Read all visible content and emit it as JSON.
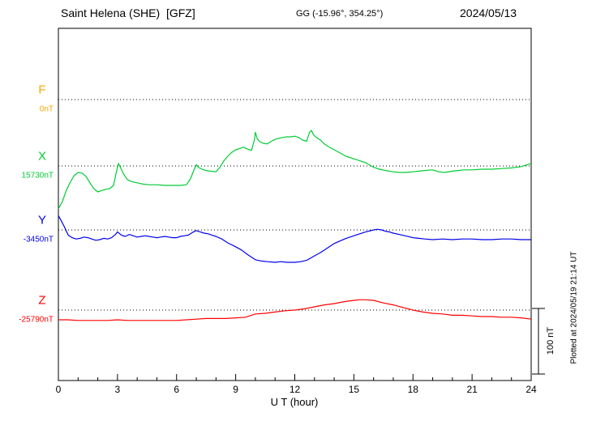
{
  "header": {
    "station_title": "Saint Helena (SHE)  [GFZ]",
    "gg_label": "GG (-15.96°, 354.25°)",
    "date": "2024/05/13"
  },
  "axis": {
    "xlabel": "U T (hour)",
    "x_ticks": [
      0,
      3,
      6,
      9,
      12,
      15,
      18,
      21,
      24
    ]
  },
  "scale_bar": {
    "label": "100 nT",
    "nT": 100
  },
  "plotted_at": "Plotted at 2024/05/19 21:14 UT",
  "chart_data": {
    "type": "line",
    "title": "Saint Helena (SHE) [GFZ] magnetogram 2024/05/13",
    "xlabel": "U T (hour)",
    "x_range": [
      0,
      24
    ],
    "x_ticks": [
      0,
      3,
      6,
      9,
      12,
      15,
      18,
      21,
      24
    ],
    "grid": "dotted horizontal baselines per component",
    "scale_bar": {
      "label": "100 nT",
      "nT": 100
    },
    "y_unit": "nT offset from component baseline",
    "series": [
      {
        "name": "F",
        "color": "#FFA500",
        "baseline_label": "0nT",
        "points": []
      },
      {
        "name": "X",
        "color": "#00CC33",
        "baseline_label": "15730nT",
        "points": [
          [
            0,
            -66
          ],
          [
            0.2,
            -55
          ],
          [
            0.4,
            -38
          ],
          [
            0.6,
            -25
          ],
          [
            0.8,
            -15
          ],
          [
            1,
            -10
          ],
          [
            1.2,
            -11
          ],
          [
            1.4,
            -16
          ],
          [
            1.6,
            -26
          ],
          [
            1.8,
            -35
          ],
          [
            2,
            -40
          ],
          [
            2.2,
            -38
          ],
          [
            2.4,
            -36
          ],
          [
            2.6,
            -35
          ],
          [
            2.8,
            -30
          ],
          [
            2.95,
            -8
          ],
          [
            3.05,
            4
          ],
          [
            3.15,
            -2
          ],
          [
            3.3,
            -12
          ],
          [
            3.5,
            -21
          ],
          [
            3.7,
            -24
          ],
          [
            4,
            -26
          ],
          [
            4.3,
            -28
          ],
          [
            4.6,
            -29
          ],
          [
            5,
            -29
          ],
          [
            5.4,
            -30
          ],
          [
            5.8,
            -30
          ],
          [
            6.2,
            -30
          ],
          [
            6.5,
            -29
          ],
          [
            6.7,
            -20
          ],
          [
            6.9,
            -5
          ],
          [
            7,
            2
          ],
          [
            7.1,
            -2
          ],
          [
            7.3,
            -5
          ],
          [
            7.5,
            -7
          ],
          [
            7.7,
            -8
          ],
          [
            8,
            -9
          ],
          [
            8.2,
            -2
          ],
          [
            8.4,
            8
          ],
          [
            8.6,
            15
          ],
          [
            8.8,
            21
          ],
          [
            9,
            25
          ],
          [
            9.2,
            27
          ],
          [
            9.4,
            29
          ],
          [
            9.6,
            26
          ],
          [
            9.8,
            24
          ],
          [
            9.95,
            40
          ],
          [
            10,
            52
          ],
          [
            10.1,
            42
          ],
          [
            10.2,
            38
          ],
          [
            10.4,
            35
          ],
          [
            10.6,
            34
          ],
          [
            10.8,
            38
          ],
          [
            11,
            41
          ],
          [
            11.2,
            43
          ],
          [
            11.4,
            44
          ],
          [
            11.6,
            45
          ],
          [
            11.8,
            45
          ],
          [
            12,
            46
          ],
          [
            12.2,
            44
          ],
          [
            12.4,
            40
          ],
          [
            12.6,
            38
          ],
          [
            12.75,
            52
          ],
          [
            12.85,
            55
          ],
          [
            12.95,
            48
          ],
          [
            13.1,
            44
          ],
          [
            13.3,
            40
          ],
          [
            13.5,
            34
          ],
          [
            13.7,
            30
          ],
          [
            14,
            25
          ],
          [
            14.3,
            20
          ],
          [
            14.6,
            15
          ],
          [
            15,
            11
          ],
          [
            15.3,
            8
          ],
          [
            15.6,
            5
          ],
          [
            16,
            -2
          ],
          [
            16.3,
            -5
          ],
          [
            16.6,
            -7
          ],
          [
            17,
            -9
          ],
          [
            17.3,
            -10
          ],
          [
            17.6,
            -10
          ],
          [
            18,
            -9
          ],
          [
            18.3,
            -8
          ],
          [
            18.6,
            -7
          ],
          [
            19,
            -6
          ],
          [
            19.3,
            -9
          ],
          [
            19.6,
            -10
          ],
          [
            20,
            -8
          ],
          [
            20.3,
            -7
          ],
          [
            20.6,
            -6
          ],
          [
            21,
            -6
          ],
          [
            21.5,
            -5
          ],
          [
            22,
            -5
          ],
          [
            22.5,
            -4
          ],
          [
            23,
            -3
          ],
          [
            23.5,
            -1
          ],
          [
            24,
            4
          ]
        ]
      },
      {
        "name": "Y",
        "color": "#0000EE",
        "baseline_label": "-3450nT",
        "points": [
          [
            0,
            22
          ],
          [
            0.15,
            14
          ],
          [
            0.3,
            5
          ],
          [
            0.5,
            -8
          ],
          [
            0.7,
            -12
          ],
          [
            0.9,
            -14
          ],
          [
            1.1,
            -13
          ],
          [
            1.3,
            -11
          ],
          [
            1.5,
            -12
          ],
          [
            1.7,
            -14
          ],
          [
            1.9,
            -16
          ],
          [
            2.1,
            -15
          ],
          [
            2.3,
            -13
          ],
          [
            2.5,
            -14
          ],
          [
            2.7,
            -12
          ],
          [
            2.9,
            -7
          ],
          [
            3,
            -3
          ],
          [
            3.2,
            -8
          ],
          [
            3.4,
            -10
          ],
          [
            3.6,
            -7
          ],
          [
            3.8,
            -9
          ],
          [
            4,
            -11
          ],
          [
            4.2,
            -10
          ],
          [
            4.4,
            -9
          ],
          [
            4.6,
            -10
          ],
          [
            4.8,
            -11
          ],
          [
            5,
            -12
          ],
          [
            5.2,
            -11
          ],
          [
            5.4,
            -10
          ],
          [
            5.6,
            -11
          ],
          [
            5.8,
            -12
          ],
          [
            6,
            -12
          ],
          [
            6.2,
            -10
          ],
          [
            6.4,
            -9
          ],
          [
            6.6,
            -8
          ],
          [
            6.8,
            -4
          ],
          [
            7,
            -1
          ],
          [
            7.2,
            -3
          ],
          [
            7.4,
            -5
          ],
          [
            7.6,
            -6
          ],
          [
            7.8,
            -8
          ],
          [
            8,
            -10
          ],
          [
            8.3,
            -14
          ],
          [
            8.6,
            -20
          ],
          [
            9,
            -26
          ],
          [
            9.3,
            -31
          ],
          [
            9.6,
            -38
          ],
          [
            10,
            -46
          ],
          [
            10.3,
            -48
          ],
          [
            10.6,
            -49
          ],
          [
            11,
            -50
          ],
          [
            11.3,
            -49
          ],
          [
            11.6,
            -50
          ],
          [
            12,
            -50
          ],
          [
            12.3,
            -49
          ],
          [
            12.6,
            -47
          ],
          [
            13,
            -40
          ],
          [
            13.3,
            -35
          ],
          [
            13.6,
            -29
          ],
          [
            14,
            -21
          ],
          [
            14.3,
            -17
          ],
          [
            14.6,
            -13
          ],
          [
            15,
            -9
          ],
          [
            15.3,
            -6
          ],
          [
            15.6,
            -3
          ],
          [
            16,
            0
          ],
          [
            16.2,
            1
          ],
          [
            16.4,
            0
          ],
          [
            16.6,
            -2
          ],
          [
            16.8,
            -3
          ],
          [
            17,
            -5
          ],
          [
            17.3,
            -7
          ],
          [
            17.6,
            -9
          ],
          [
            18,
            -12
          ],
          [
            18.3,
            -13
          ],
          [
            18.6,
            -14
          ],
          [
            19,
            -15
          ],
          [
            19.5,
            -14
          ],
          [
            20,
            -15
          ],
          [
            20.5,
            -14
          ],
          [
            21,
            -14
          ],
          [
            21.5,
            -15
          ],
          [
            22,
            -15
          ],
          [
            22.5,
            -14
          ],
          [
            23,
            -14
          ],
          [
            23.5,
            -15
          ],
          [
            24,
            -15
          ]
        ]
      },
      {
        "name": "Z",
        "color": "#FF0000",
        "baseline_label": "-25790nT",
        "points": [
          [
            0,
            -15
          ],
          [
            0.5,
            -15
          ],
          [
            1,
            -16
          ],
          [
            1.5,
            -16
          ],
          [
            2,
            -16
          ],
          [
            2.5,
            -16
          ],
          [
            3,
            -15
          ],
          [
            3.5,
            -16
          ],
          [
            4,
            -16
          ],
          [
            4.5,
            -16
          ],
          [
            5,
            -16
          ],
          [
            5.5,
            -16
          ],
          [
            6,
            -16
          ],
          [
            6.5,
            -15
          ],
          [
            7,
            -14
          ],
          [
            7.5,
            -13
          ],
          [
            8,
            -13
          ],
          [
            8.5,
            -13
          ],
          [
            9,
            -12
          ],
          [
            9.5,
            -11
          ],
          [
            10,
            -6
          ],
          [
            10.5,
            -5
          ],
          [
            11,
            -3
          ],
          [
            11.5,
            -1
          ],
          [
            12,
            0
          ],
          [
            12.5,
            2
          ],
          [
            13,
            5
          ],
          [
            13.5,
            8
          ],
          [
            14,
            10
          ],
          [
            14.5,
            13
          ],
          [
            15,
            15
          ],
          [
            15.3,
            16
          ],
          [
            15.6,
            16
          ],
          [
            16,
            15
          ],
          [
            16.5,
            11
          ],
          [
            17,
            8
          ],
          [
            17.5,
            4
          ],
          [
            18,
            0
          ],
          [
            18.5,
            -3
          ],
          [
            19,
            -5
          ],
          [
            19.5,
            -6
          ],
          [
            20,
            -8
          ],
          [
            20.5,
            -8
          ],
          [
            21,
            -9
          ],
          [
            21.5,
            -10
          ],
          [
            22,
            -10
          ],
          [
            22.5,
            -11
          ],
          [
            23,
            -11
          ],
          [
            23.5,
            -12
          ],
          [
            24,
            -14
          ]
        ]
      }
    ]
  }
}
